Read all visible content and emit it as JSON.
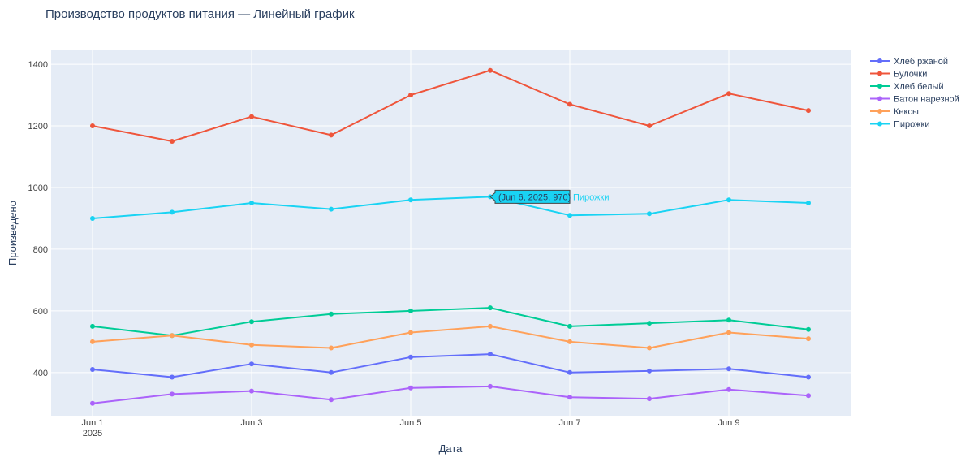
{
  "chart_data": {
    "type": "line",
    "title": "Производство продуктов питания — Линейный график",
    "xlabel": "Дата",
    "ylabel": "Произведено",
    "x": [
      "2025-06-01",
      "2025-06-02",
      "2025-06-03",
      "2025-06-04",
      "2025-06-05",
      "2025-06-06",
      "2025-06-07",
      "2025-06-08",
      "2025-06-09",
      "2025-06-10"
    ],
    "x_ticks": [
      {
        "date": "2025-06-01",
        "label": "Jun 1",
        "sublabel": "2025"
      },
      {
        "date": "2025-06-03",
        "label": "Jun 3",
        "sublabel": ""
      },
      {
        "date": "2025-06-05",
        "label": "Jun 5",
        "sublabel": ""
      },
      {
        "date": "2025-06-07",
        "label": "Jun 7",
        "sublabel": ""
      },
      {
        "date": "2025-06-09",
        "label": "Jun 9",
        "sublabel": ""
      }
    ],
    "ylim": [
      260,
      1445
    ],
    "y_ticks": [
      400,
      600,
      800,
      1000,
      1200,
      1400
    ],
    "grid": true,
    "legend_position": "top-right",
    "series": [
      {
        "name": "Хлеб ржаной",
        "color": "#636efa",
        "values": [
          410,
          385,
          428,
          400,
          450,
          460,
          400,
          405,
          412,
          385
        ]
      },
      {
        "name": "Булочки",
        "color": "#ef553b",
        "values": [
          1200,
          1150,
          1230,
          1170,
          1300,
          1380,
          1270,
          1200,
          1305,
          1250
        ]
      },
      {
        "name": "Хлеб белый",
        "color": "#00cc96",
        "values": [
          550,
          520,
          565,
          590,
          600,
          610,
          550,
          560,
          570,
          540
        ]
      },
      {
        "name": "Батон нарезной",
        "color": "#ab63fa",
        "values": [
          300,
          330,
          340,
          312,
          350,
          355,
          320,
          315,
          345,
          325
        ]
      },
      {
        "name": "Кексы",
        "color": "#ffa15a",
        "values": [
          500,
          520,
          490,
          480,
          530,
          550,
          500,
          480,
          530,
          510
        ]
      },
      {
        "name": "Пирожки",
        "color": "#19d3f3",
        "values": [
          900,
          920,
          950,
          930,
          960,
          970,
          910,
          915,
          960,
          950
        ]
      }
    ],
    "hover": {
      "series_index": 5,
      "point_index": 5,
      "text": "(Jun 6, 2025, 970)",
      "series_label": "Пирожки"
    }
  }
}
